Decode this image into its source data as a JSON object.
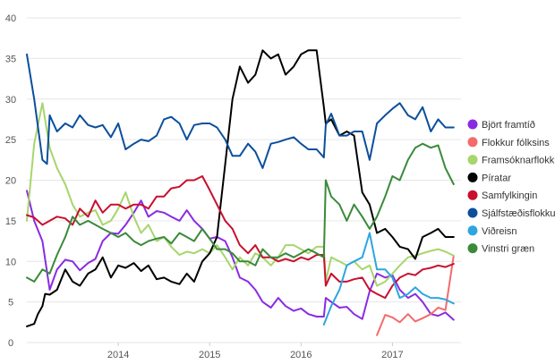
{
  "chart_data": {
    "type": "line",
    "title": "",
    "xlabel": "",
    "ylabel": "",
    "xlim": [
      2013.0,
      2017.75
    ],
    "ylim": [
      0,
      40
    ],
    "grid": true,
    "legend_placement": "right",
    "y_ticks": [
      "0",
      "5",
      "10",
      "15",
      "20",
      "25",
      "30",
      "35",
      "40"
    ],
    "x_ticks": [
      {
        "label": "2014",
        "value": 2014.0
      },
      {
        "label": "2015",
        "value": 2015.0
      },
      {
        "label": "2016",
        "value": 2016.0
      },
      {
        "label": "2017",
        "value": 2017.0
      }
    ],
    "series": [
      {
        "name": "Björt framtíð",
        "color": "#8a2be2",
        "x": [
          2013.0,
          2013.08,
          2013.17,
          2013.25,
          2013.33,
          2013.42,
          2013.5,
          2013.58,
          2013.67,
          2013.75,
          2013.83,
          2013.92,
          2014.0,
          2014.08,
          2014.17,
          2014.25,
          2014.33,
          2014.42,
          2014.5,
          2014.58,
          2014.67,
          2014.75,
          2014.83,
          2014.92,
          2015.0,
          2015.08,
          2015.17,
          2015.25,
          2015.33,
          2015.42,
          2015.5,
          2015.58,
          2015.67,
          2015.75,
          2015.83,
          2015.92,
          2016.0,
          2016.08,
          2016.17,
          2016.25,
          2016.27,
          2016.33,
          2016.42,
          2016.5,
          2016.58,
          2016.67,
          2016.75,
          2016.83,
          2016.92,
          2017.0,
          2017.08,
          2017.17,
          2017.25,
          2017.33,
          2017.42,
          2017.5,
          2017.58,
          2017.67
        ],
        "y": [
          18.7,
          15,
          12.5,
          6.5,
          9,
          10.2,
          10,
          8.9,
          9.8,
          10.3,
          12.5,
          13.5,
          13.4,
          14.5,
          16,
          17.5,
          15.5,
          16.2,
          16,
          15.5,
          15,
          16.3,
          15,
          14,
          12.8,
          13,
          12.5,
          10.5,
          8,
          7.5,
          6.5,
          5,
          4.3,
          5.5,
          4.5,
          3.9,
          4.2,
          3.5,
          3.2,
          3.2,
          5.5,
          5,
          4.3,
          4.4,
          3.5,
          2.9,
          6.3,
          8.5,
          8,
          8.3,
          6.5,
          5.5,
          6,
          5,
          3.5,
          3.3,
          3.7,
          2.8
        ]
      },
      {
        "name": "Flokkur fólksins",
        "color": "#f36b6b",
        "x": [
          2016.83,
          2016.92,
          2017.0,
          2017.08,
          2017.17,
          2017.25,
          2017.33,
          2017.42,
          2017.5,
          2017.58,
          2017.67
        ],
        "y": [
          0.9,
          3.4,
          3.1,
          2.5,
          3.5,
          2.6,
          3,
          3.5,
          4.3,
          4,
          10.7
        ]
      },
      {
        "name": "Framsóknarflokkur",
        "color": "#a8d56c",
        "x": [
          2013.0,
          2013.08,
          2013.17,
          2013.25,
          2013.33,
          2013.42,
          2013.5,
          2013.58,
          2013.67,
          2013.75,
          2013.83,
          2013.92,
          2014.0,
          2014.08,
          2014.17,
          2014.25,
          2014.33,
          2014.42,
          2014.5,
          2014.58,
          2014.67,
          2014.75,
          2014.83,
          2014.92,
          2015.0,
          2015.08,
          2015.17,
          2015.25,
          2015.33,
          2015.42,
          2015.5,
          2015.58,
          2015.67,
          2015.75,
          2015.83,
          2015.92,
          2016.0,
          2016.08,
          2016.17,
          2016.25,
          2016.27,
          2016.33,
          2016.42,
          2016.5,
          2016.58,
          2016.67,
          2016.75,
          2016.83,
          2016.92,
          2017.0,
          2017.08,
          2017.17,
          2017.25,
          2017.33,
          2017.42,
          2017.5,
          2017.58,
          2017.67
        ],
        "y": [
          15,
          24.5,
          29.5,
          24,
          21.5,
          19.5,
          17,
          15.5,
          16,
          16.3,
          14.5,
          15,
          16.5,
          18.5,
          15.5,
          13.5,
          14.5,
          12.5,
          13,
          11.8,
          10.8,
          11.2,
          11,
          11.5,
          11,
          12,
          10.5,
          9,
          10.5,
          9.5,
          11,
          10.5,
          9.5,
          10.5,
          12,
          12,
          11.5,
          11,
          11.8,
          11.8,
          7.5,
          10.5,
          10,
          9.5,
          10,
          9,
          9.5,
          7,
          7.5,
          8.5,
          9.5,
          10.5,
          10.7,
          11,
          11.3,
          11.5,
          11.2,
          10.7
        ]
      },
      {
        "name": "Píratar",
        "color": "#000000",
        "x": [
          2013.0,
          2013.08,
          2013.12,
          2013.17,
          2013.2,
          2013.25,
          2013.33,
          2013.42,
          2013.5,
          2013.58,
          2013.67,
          2013.75,
          2013.83,
          2013.92,
          2014.0,
          2014.08,
          2014.17,
          2014.25,
          2014.33,
          2014.42,
          2014.5,
          2014.58,
          2014.67,
          2014.75,
          2014.83,
          2014.92,
          2015.0,
          2015.08,
          2015.17,
          2015.25,
          2015.33,
          2015.42,
          2015.5,
          2015.58,
          2015.67,
          2015.75,
          2015.83,
          2015.92,
          2016.0,
          2016.08,
          2016.17,
          2016.25,
          2016.27,
          2016.33,
          2016.42,
          2016.5,
          2016.58,
          2016.67,
          2016.75,
          2016.83,
          2016.92,
          2017.0,
          2017.08,
          2017.17,
          2017.25,
          2017.33,
          2017.42,
          2017.5,
          2017.58,
          2017.67
        ],
        "y": [
          2,
          2.3,
          3.5,
          4.5,
          6,
          5.9,
          6.5,
          9,
          7.5,
          7,
          8.5,
          9,
          10.5,
          8,
          9.5,
          9.2,
          9.8,
          8.8,
          9.5,
          7.8,
          8,
          7.5,
          7.2,
          8.5,
          7.5,
          10,
          11,
          13,
          22,
          30,
          34,
          32,
          33,
          36,
          35,
          35.5,
          33,
          34,
          35.5,
          36,
          36,
          29,
          27,
          27.5,
          25.5,
          26,
          25.5,
          18.5,
          17,
          13.5,
          14,
          13,
          11.8,
          11.5,
          10.3,
          13,
          13.5,
          14,
          13,
          13
        ]
      },
      {
        "name": "Samfylkingin",
        "color": "#c8102e",
        "x": [
          2013.0,
          2013.08,
          2013.17,
          2013.25,
          2013.33,
          2013.42,
          2013.5,
          2013.58,
          2013.67,
          2013.75,
          2013.83,
          2013.92,
          2014.0,
          2014.08,
          2014.17,
          2014.25,
          2014.33,
          2014.42,
          2014.5,
          2014.58,
          2014.67,
          2014.75,
          2014.83,
          2014.92,
          2015.0,
          2015.08,
          2015.17,
          2015.25,
          2015.33,
          2015.42,
          2015.5,
          2015.58,
          2015.67,
          2015.75,
          2015.83,
          2015.92,
          2016.0,
          2016.08,
          2016.17,
          2016.25,
          2016.27,
          2016.33,
          2016.42,
          2016.5,
          2016.58,
          2016.67,
          2016.75,
          2016.83,
          2016.92,
          2017.0,
          2017.08,
          2017.17,
          2017.25,
          2017.33,
          2017.42,
          2017.5,
          2017.58,
          2017.67
        ],
        "y": [
          15.7,
          15.4,
          14.5,
          15,
          15.5,
          15.3,
          14.5,
          16.5,
          15.5,
          17.5,
          16,
          17,
          17,
          16.5,
          17,
          17,
          16.5,
          18,
          18,
          19,
          19.2,
          20,
          20,
          20.5,
          18.8,
          17,
          15,
          14,
          12,
          11,
          12,
          10.5,
          10.5,
          10,
          10.3,
          10,
          10.5,
          10.2,
          10.8,
          10.8,
          7,
          8.5,
          7.5,
          7.5,
          7.8,
          8,
          6.5,
          6,
          5.5,
          7,
          8,
          8.5,
          8.3,
          9,
          9.2,
          9.5,
          9.3,
          9.7
        ]
      },
      {
        "name": "Sjálfstæðisflokkur",
        "color": "#0b4f9c",
        "x": [
          2013.0,
          2013.08,
          2013.17,
          2013.22,
          2013.25,
          2013.33,
          2013.42,
          2013.5,
          2013.58,
          2013.67,
          2013.75,
          2013.83,
          2013.92,
          2014.0,
          2014.08,
          2014.17,
          2014.25,
          2014.33,
          2014.42,
          2014.5,
          2014.58,
          2014.67,
          2014.75,
          2014.83,
          2014.92,
          2015.0,
          2015.08,
          2015.17,
          2015.25,
          2015.33,
          2015.42,
          2015.5,
          2015.58,
          2015.67,
          2015.75,
          2015.83,
          2015.92,
          2016.0,
          2016.08,
          2016.17,
          2016.25,
          2016.27,
          2016.33,
          2016.42,
          2016.5,
          2016.58,
          2016.67,
          2016.75,
          2016.83,
          2016.92,
          2017.0,
          2017.08,
          2017.17,
          2017.25,
          2017.33,
          2017.42,
          2017.5,
          2017.58,
          2017.67
        ],
        "y": [
          35.5,
          30,
          22.5,
          22,
          28,
          26,
          27,
          26.5,
          28,
          26.8,
          26.5,
          26.8,
          25.3,
          27,
          23.8,
          24.5,
          25,
          24.8,
          25.5,
          27.5,
          27.8,
          27,
          25,
          26.8,
          27,
          27,
          26.5,
          25,
          23,
          23,
          24.5,
          23.5,
          21.5,
          24.5,
          24.7,
          25,
          25.3,
          24.5,
          23.8,
          23.8,
          22.8,
          26.8,
          28.2,
          25.5,
          25.5,
          26,
          26,
          22.5,
          27,
          28,
          28.8,
          29.5,
          28,
          27.5,
          29,
          26,
          27.5,
          26.5,
          26.5
        ]
      },
      {
        "name": "Viðreisn",
        "color": "#2ca6e0",
        "x": [
          2016.25,
          2016.33,
          2016.42,
          2016.5,
          2016.58,
          2016.67,
          2016.75,
          2016.83,
          2016.92,
          2017.0,
          2017.08,
          2017.17,
          2017.25,
          2017.33,
          2017.42,
          2017.5,
          2017.58,
          2017.67
        ],
        "y": [
          2.2,
          4.5,
          6.5,
          9.5,
          10,
          10.5,
          13.5,
          9,
          9,
          8,
          5.5,
          6,
          6.8,
          6,
          5.5,
          5.5,
          5.3,
          4.8
        ]
      },
      {
        "name": "Vinstri græn",
        "color": "#3a8a3a",
        "x": [
          2013.0,
          2013.08,
          2013.17,
          2013.25,
          2013.33,
          2013.42,
          2013.5,
          2013.58,
          2013.67,
          2013.75,
          2013.83,
          2013.92,
          2014.0,
          2014.08,
          2014.17,
          2014.25,
          2014.33,
          2014.42,
          2014.5,
          2014.58,
          2014.67,
          2014.75,
          2014.83,
          2014.92,
          2015.0,
          2015.08,
          2015.17,
          2015.25,
          2015.33,
          2015.42,
          2015.5,
          2015.58,
          2015.67,
          2015.75,
          2015.83,
          2015.92,
          2016.0,
          2016.08,
          2016.17,
          2016.25,
          2016.27,
          2016.33,
          2016.42,
          2016.5,
          2016.58,
          2016.67,
          2016.75,
          2016.83,
          2016.92,
          2017.0,
          2017.08,
          2017.17,
          2017.25,
          2017.33,
          2017.42,
          2017.5,
          2017.58,
          2017.67
        ],
        "y": [
          8,
          7.5,
          9,
          8.5,
          10.8,
          13,
          15.5,
          14.5,
          15,
          14.5,
          14,
          13.5,
          13,
          13.5,
          12.5,
          12,
          12.5,
          12.8,
          13,
          12.2,
          13.5,
          13,
          12.5,
          14,
          12.8,
          11.5,
          11.5,
          11,
          10,
          10,
          9.5,
          11.5,
          10.5,
          10.5,
          11,
          10.5,
          11,
          11.5,
          11,
          10.5,
          20,
          18,
          17,
          15,
          17,
          15.5,
          14,
          15.5,
          18,
          20.5,
          20,
          22.5,
          24,
          24.5,
          24,
          24.3,
          21.5,
          19.5
        ]
      }
    ]
  }
}
